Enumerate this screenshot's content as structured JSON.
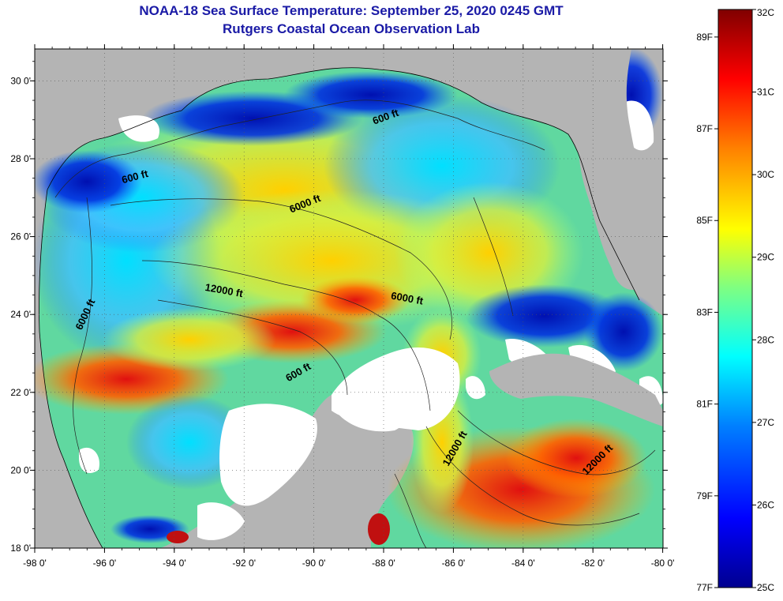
{
  "title": "NOAA-18 Sea Surface Temperature:  September 25, 2020 0245 GMT",
  "subtitle": "Rutgers Coastal Ocean Observation Lab",
  "lon_labels": [
    "-98 0'",
    "-96 0'",
    "-94 0'",
    "-92 0'",
    "-90 0'",
    "-88 0'",
    "-86 0'",
    "-84 0'",
    "-82 0'",
    "-80 0'"
  ],
  "lat_labels": [
    "18 0'",
    "20 0'",
    "22 0'",
    "24 0'",
    "26 0'",
    "28 0'",
    "30 0'"
  ],
  "contour_labels": [
    {
      "text": "600 ft"
    },
    {
      "text": "600 ft"
    },
    {
      "text": "6000 ft"
    },
    {
      "text": "12000 ft"
    },
    {
      "text": "6000 ft"
    },
    {
      "text": "6000 ft"
    },
    {
      "text": "600 ft"
    },
    {
      "text": "12000 ft"
    },
    {
      "text": "12000 ft"
    }
  ],
  "colorbar": {
    "celsius_labels": [
      "32C",
      "31C",
      "30C",
      "29C",
      "28C",
      "27C",
      "26C",
      "25C"
    ],
    "fahrenheit_labels": [
      "89F",
      "87F",
      "85F",
      "83F",
      "81F",
      "79F",
      "77F"
    ],
    "min_c": 25,
    "max_c": 32,
    "colors": [
      "#00008f",
      "#0000ff",
      "#0080ff",
      "#00ffff",
      "#80ff80",
      "#ffff00",
      "#ff8000",
      "#ff0000",
      "#800000"
    ]
  },
  "colors": {
    "land": "#b4b4b4",
    "cloud": "#ffffff",
    "title": "#1a1aa6"
  }
}
